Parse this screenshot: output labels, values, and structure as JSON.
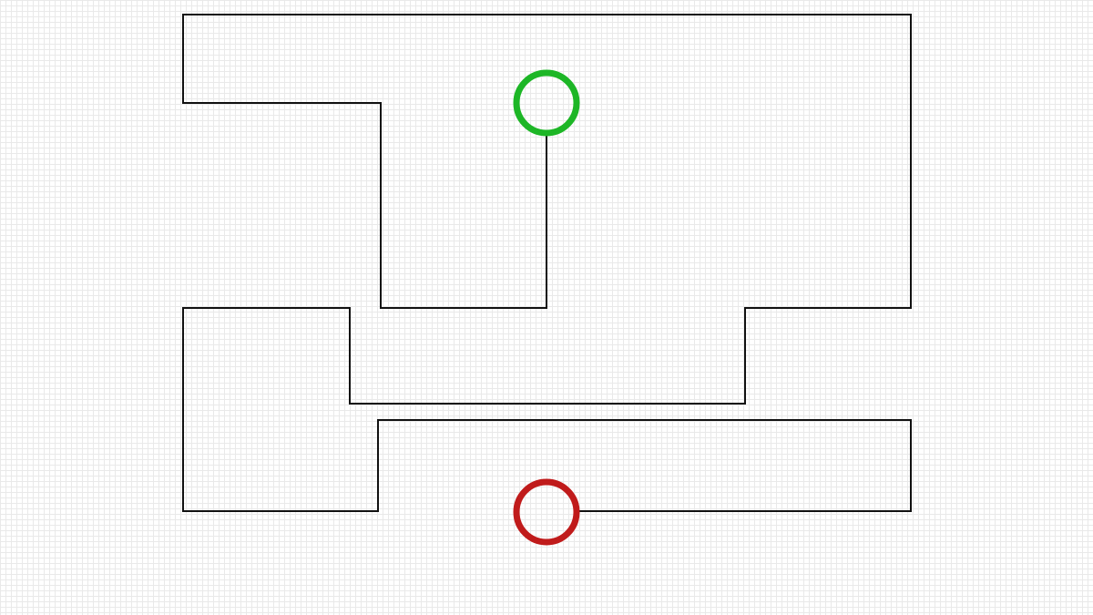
{
  "colors": {
    "background": "#ffffff",
    "grid": "#e9e9e9",
    "wall": "#111111",
    "start": "#1db626",
    "goal": "#c01b1b"
  },
  "markers": {
    "start": {
      "name": "start-circle",
      "color": "#1db626"
    },
    "goal": {
      "name": "goal-circle",
      "color": "#c01b1b"
    }
  }
}
